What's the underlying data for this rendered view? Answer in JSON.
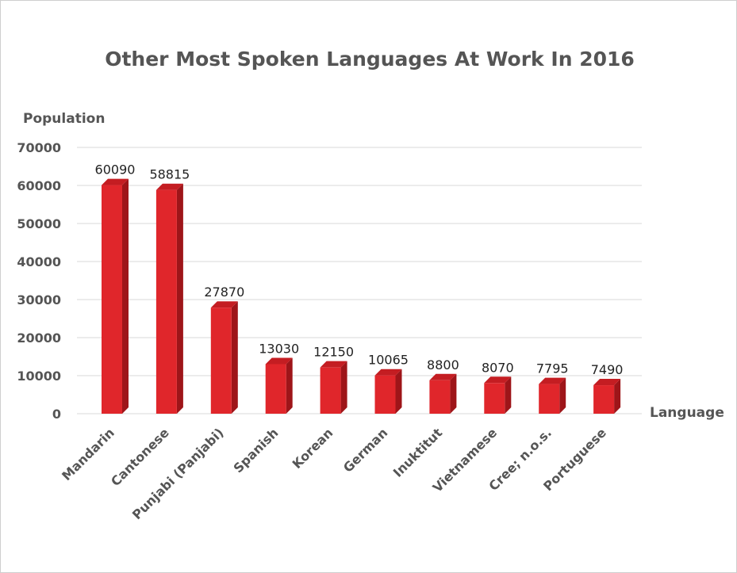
{
  "chart_data": {
    "type": "bar",
    "title": "Other Most Spoken Languages At Work In 2016",
    "xlabel": "Language",
    "ylabel": "Population",
    "categories": [
      "Mandarin",
      "Cantonese",
      "Punjabi (Panjabi)",
      "Spanish",
      "Korean",
      "German",
      "Inuktitut",
      "Vietnamese",
      "Cree; n.o.s.",
      "Portuguese"
    ],
    "values": [
      60090,
      58815,
      27870,
      13030,
      12150,
      10065,
      8800,
      8070,
      7795,
      7490
    ],
    "data_labels": [
      "60090",
      "58815",
      "27870",
      "13030",
      "12150",
      "10065",
      "8800",
      "8070",
      "7795",
      "7490"
    ],
    "yticks": [
      0,
      10000,
      20000,
      30000,
      40000,
      50000,
      60000,
      70000
    ],
    "ylim": [
      0,
      70000
    ],
    "grid": true,
    "bar_style": "3d",
    "colors": {
      "bar_front": "#e0262b",
      "bar_side": "#9e1519",
      "bar_top": "#c41d22",
      "text": "#555555",
      "grid": "#d9d9d9"
    }
  }
}
